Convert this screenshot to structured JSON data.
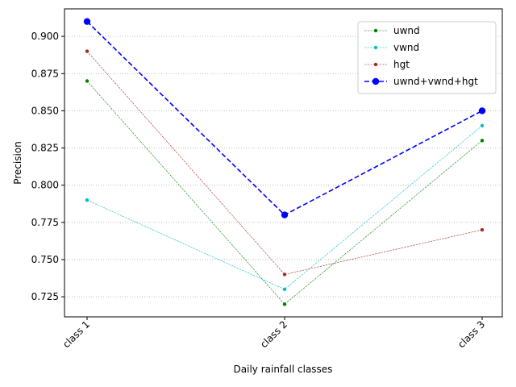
{
  "chart_data": {
    "type": "line",
    "title": "",
    "xlabel": "Daily rainfall classes",
    "ylabel": "Precision",
    "categories": [
      "class 1",
      "class 2",
      "class 3"
    ],
    "ylim": [
      0.7115,
      0.9185
    ],
    "yticks": [
      0.725,
      0.75,
      0.775,
      0.8,
      0.825,
      0.85,
      0.875,
      0.9
    ],
    "ytick_labels": [
      "0.725",
      "0.750",
      "0.775",
      "0.800",
      "0.825",
      "0.850",
      "0.875",
      "0.900"
    ],
    "grid": "horizontal, dotted",
    "legend_position": "top-right",
    "series": [
      {
        "name": "uwnd",
        "values": [
          0.87,
          0.72,
          0.83
        ],
        "color": "#008000",
        "style": "dashed-thin",
        "marker": "small-dot"
      },
      {
        "name": "vwnd",
        "values": [
          0.79,
          0.73,
          0.84
        ],
        "color": "#00bfbf",
        "style": "dashed-thin",
        "marker": "small-dot"
      },
      {
        "name": "hgt",
        "values": [
          0.89,
          0.74,
          0.77
        ],
        "color": "#a52a2a",
        "style": "dashed-thin",
        "marker": "small-dot"
      },
      {
        "name": "uwnd+vwnd+hgt",
        "values": [
          0.91,
          0.78,
          0.85
        ],
        "color": "#0000ff",
        "style": "dashed-thick",
        "marker": "large-dot"
      }
    ]
  }
}
